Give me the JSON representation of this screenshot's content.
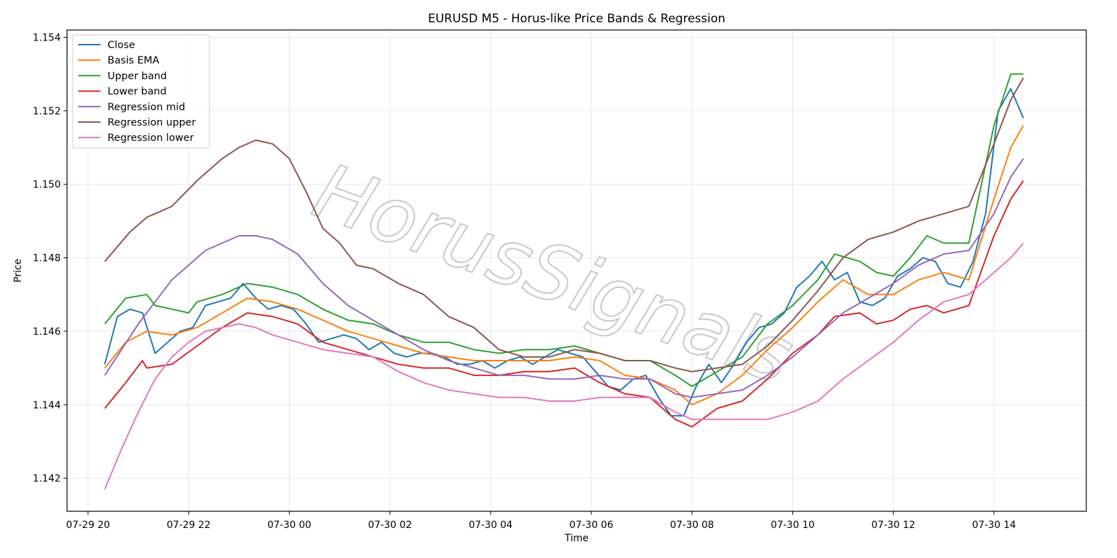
{
  "chart_data": {
    "type": "line",
    "title": "EURUSD M5 - Horus-like Price Bands & Regression",
    "xlabel": "Time",
    "ylabel": "Price",
    "ylim": [
      1.1411,
      1.1542
    ],
    "xlim": [
      "07-29 19:35",
      "07-30 15:50"
    ],
    "grid": true,
    "legend": "top-left",
    "watermark": "HorusSignals",
    "x_ticks": [
      "07-29 20",
      "07-29 22",
      "07-30 00",
      "07-30 02",
      "07-30 04",
      "07-30 06",
      "07-30 08",
      "07-30 10",
      "07-30 12",
      "07-30 14"
    ],
    "y_ticks": [
      "1.142",
      "1.144",
      "1.146",
      "1.148",
      "1.150",
      "1.152",
      "1.154"
    ],
    "x_tick_minutes": [
      0,
      120,
      240,
      360,
      480,
      600,
      720,
      840,
      960,
      1080
    ],
    "y_tick_values": [
      1.142,
      1.144,
      1.146,
      1.148,
      1.15,
      1.152,
      1.154
    ],
    "series": [
      {
        "name": "Close",
        "color": "#1f77b4",
        "x": [
          "07-29 20:20",
          "07-29 20:35",
          "07-29 20:50",
          "07-29 21:05",
          "07-29 21:20",
          "07-29 21:35",
          "07-29 21:50",
          "07-29 22:05",
          "07-29 22:20",
          "07-29 22:35",
          "07-29 22:50",
          "07-29 23:05",
          "07-29 23:20",
          "07-29 23:35",
          "07-29 23:50",
          "07-30 00:05",
          "07-30 00:20",
          "07-30 00:35",
          "07-30 00:50",
          "07-30 01:05",
          "07-30 01:20",
          "07-30 01:35",
          "07-30 01:50",
          "07-30 02:05",
          "07-30 02:20",
          "07-30 02:35",
          "07-30 02:50",
          "07-30 03:05",
          "07-30 03:20",
          "07-30 03:35",
          "07-30 03:50",
          "07-30 04:05",
          "07-30 04:20",
          "07-30 04:35",
          "07-30 04:50",
          "07-30 05:05",
          "07-30 05:20",
          "07-30 05:35",
          "07-30 05:50",
          "07-30 06:05",
          "07-30 06:20",
          "07-30 06:35",
          "07-30 06:50",
          "07-30 07:05",
          "07-30 07:20",
          "07-30 07:35",
          "07-30 07:50",
          "07-30 08:05",
          "07-30 08:20",
          "07-30 08:35",
          "07-30 08:50",
          "07-30 09:05",
          "07-30 09:20",
          "07-30 09:35",
          "07-30 09:50",
          "07-30 10:05",
          "07-30 10:20",
          "07-30 10:35",
          "07-30 10:50",
          "07-30 11:05",
          "07-30 11:20",
          "07-30 11:35",
          "07-30 11:50",
          "07-30 12:05",
          "07-30 12:20",
          "07-30 12:35",
          "07-30 12:50",
          "07-30 13:05",
          "07-30 13:20",
          "07-30 13:35",
          "07-30 13:50",
          "07-30 14:05",
          "07-30 14:20",
          "07-30 14:35"
        ],
        "y": [
          1.1451,
          1.1464,
          1.1466,
          1.1465,
          1.1454,
          1.1457,
          1.146,
          1.1461,
          1.1467,
          1.1468,
          1.1469,
          1.1473,
          1.1469,
          1.1466,
          1.1467,
          1.1466,
          1.1462,
          1.1457,
          1.1458,
          1.1459,
          1.1458,
          1.1455,
          1.1457,
          1.1454,
          1.1453,
          1.1454,
          1.1454,
          1.1453,
          1.1451,
          1.1451,
          1.1452,
          1.145,
          1.1452,
          1.1453,
          1.1451,
          1.1453,
          1.1455,
          1.1454,
          1.1453,
          1.1449,
          1.1445,
          1.1444,
          1.1447,
          1.1448,
          1.1442,
          1.1437,
          1.1437,
          1.1445,
          1.1451,
          1.1446,
          1.1451,
          1.1457,
          1.1461,
          1.1462,
          1.1465,
          1.1472,
          1.1475,
          1.1479,
          1.1474,
          1.1476,
          1.1468,
          1.1467,
          1.1469,
          1.1475,
          1.1477,
          1.148,
          1.1479,
          1.1473,
          1.1472,
          1.1479,
          1.1492,
          1.152,
          1.1526,
          1.1518
        ]
      },
      {
        "name": "Basis EMA",
        "color": "#ff7f0e",
        "x": [
          "07-29 20:20",
          "07-29 20:45",
          "07-29 21:10",
          "07-29 21:40",
          "07-29 22:10",
          "07-29 22:40",
          "07-29 23:10",
          "07-29 23:40",
          "07-30 00:10",
          "07-30 00:40",
          "07-30 01:10",
          "07-30 01:40",
          "07-30 02:10",
          "07-30 02:40",
          "07-30 03:10",
          "07-30 03:40",
          "07-30 04:10",
          "07-30 04:40",
          "07-30 05:10",
          "07-30 05:40",
          "07-30 06:10",
          "07-30 06:40",
          "07-30 07:10",
          "07-30 07:40",
          "07-30 08:00",
          "07-30 08:30",
          "07-30 09:00",
          "07-30 09:30",
          "07-30 10:00",
          "07-30 10:30",
          "07-30 11:00",
          "07-30 11:30",
          "07-30 12:00",
          "07-30 12:30",
          "07-30 13:00",
          "07-30 13:30",
          "07-30 14:00",
          "07-30 14:20",
          "07-30 14:35"
        ],
        "y": [
          1.145,
          1.1457,
          1.146,
          1.1459,
          1.1461,
          1.1465,
          1.1469,
          1.1468,
          1.1466,
          1.1463,
          1.146,
          1.1458,
          1.1456,
          1.1454,
          1.1453,
          1.1452,
          1.1452,
          1.1452,
          1.1452,
          1.1453,
          1.1452,
          1.1448,
          1.1447,
          1.1444,
          1.144,
          1.1443,
          1.1448,
          1.1455,
          1.1461,
          1.1468,
          1.1474,
          1.147,
          1.147,
          1.1474,
          1.1476,
          1.1474,
          1.1496,
          1.151,
          1.1516
        ]
      },
      {
        "name": "Upper band",
        "color": "#2ca02c",
        "x": [
          "07-29 20:20",
          "07-29 20:45",
          "07-29 21:10",
          "07-29 21:20",
          "07-29 21:40",
          "07-29 22:00",
          "07-29 22:10",
          "07-29 22:40",
          "07-29 23:10",
          "07-29 23:40",
          "07-30 00:10",
          "07-30 00:40",
          "07-30 01:10",
          "07-30 01:40",
          "07-30 02:10",
          "07-30 02:40",
          "07-30 03:10",
          "07-30 03:40",
          "07-30 04:10",
          "07-30 04:40",
          "07-30 05:10",
          "07-30 05:40",
          "07-30 06:10",
          "07-30 06:40",
          "07-30 07:10",
          "07-30 07:40",
          "07-30 08:00",
          "07-30 08:30",
          "07-30 09:00",
          "07-30 09:30",
          "07-30 10:00",
          "07-30 10:30",
          "07-30 10:50",
          "07-30 11:20",
          "07-30 11:40",
          "07-30 12:00",
          "07-30 12:20",
          "07-30 12:40",
          "07-30 13:00",
          "07-30 13:30",
          "07-30 14:00",
          "07-30 14:20",
          "07-30 14:35"
        ],
        "y": [
          1.1462,
          1.1469,
          1.147,
          1.1467,
          1.1466,
          1.1465,
          1.1468,
          1.147,
          1.1473,
          1.1472,
          1.147,
          1.1466,
          1.1463,
          1.1462,
          1.1459,
          1.1457,
          1.1457,
          1.1455,
          1.1454,
          1.1455,
          1.1455,
          1.1456,
          1.1454,
          1.1452,
          1.1452,
          1.1448,
          1.1445,
          1.1449,
          1.1453,
          1.1462,
          1.1467,
          1.1474,
          1.1481,
          1.1479,
          1.1476,
          1.1475,
          1.148,
          1.1486,
          1.1484,
          1.1484,
          1.1516,
          1.153,
          1.153
        ]
      },
      {
        "name": "Lower band",
        "color": "#d62728",
        "x": [
          "07-29 20:20",
          "07-29 20:45",
          "07-29 21:05",
          "07-29 21:10",
          "07-29 21:40",
          "07-29 22:10",
          "07-29 22:40",
          "07-29 23:10",
          "07-29 23:40",
          "07-30 00:10",
          "07-30 00:40",
          "07-30 01:10",
          "07-30 01:40",
          "07-30 02:10",
          "07-30 02:40",
          "07-30 03:10",
          "07-30 03:40",
          "07-30 04:10",
          "07-30 04:40",
          "07-30 05:10",
          "07-30 05:40",
          "07-30 06:10",
          "07-30 06:40",
          "07-30 07:10",
          "07-30 07:40",
          "07-30 08:00",
          "07-30 08:30",
          "07-30 09:00",
          "07-30 09:30",
          "07-30 10:00",
          "07-30 10:30",
          "07-30 10:50",
          "07-30 11:20",
          "07-30 11:40",
          "07-30 12:00",
          "07-30 12:20",
          "07-30 12:40",
          "07-30 13:00",
          "07-30 13:30",
          "07-30 14:00",
          "07-30 14:20",
          "07-30 14:35"
        ],
        "y": [
          1.1439,
          1.1446,
          1.1452,
          1.145,
          1.1451,
          1.1456,
          1.1461,
          1.1465,
          1.1464,
          1.1462,
          1.1457,
          1.1455,
          1.1453,
          1.1451,
          1.145,
          1.145,
          1.1448,
          1.1448,
          1.1449,
          1.1449,
          1.145,
          1.1446,
          1.1443,
          1.1442,
          1.1436,
          1.1434,
          1.1439,
          1.1441,
          1.1447,
          1.1454,
          1.1459,
          1.1464,
          1.1465,
          1.1462,
          1.1463,
          1.1466,
          1.1467,
          1.1465,
          1.1467,
          1.1486,
          1.1496,
          1.1501
        ]
      },
      {
        "name": "Regression mid",
        "color": "#9467bd",
        "x": [
          "07-29 20:20",
          "07-29 21:00",
          "07-29 21:40",
          "07-29 22:20",
          "07-29 23:00",
          "07-29 23:20",
          "07-29 23:40",
          "07-30 00:10",
          "07-30 00:40",
          "07-30 01:10",
          "07-30 01:40",
          "07-30 02:10",
          "07-30 02:40",
          "07-30 03:10",
          "07-30 03:40",
          "07-30 04:10",
          "07-30 04:40",
          "07-30 05:10",
          "07-30 05:40",
          "07-30 06:10",
          "07-30 06:40",
          "07-30 07:10",
          "07-30 07:40",
          "07-30 08:00",
          "07-30 08:30",
          "07-30 09:00",
          "07-30 09:30",
          "07-30 10:00",
          "07-30 10:30",
          "07-30 11:00",
          "07-30 11:30",
          "07-30 12:00",
          "07-30 12:30",
          "07-30 13:00",
          "07-30 13:30",
          "07-30 14:00",
          "07-30 14:20",
          "07-30 14:35"
        ],
        "y": [
          1.1448,
          1.1462,
          1.1474,
          1.1482,
          1.1486,
          1.1486,
          1.1485,
          1.1481,
          1.1473,
          1.1467,
          1.1463,
          1.1459,
          1.1455,
          1.1452,
          1.145,
          1.1448,
          1.1448,
          1.1447,
          1.1447,
          1.1448,
          1.1447,
          1.1447,
          1.1443,
          1.1442,
          1.1443,
          1.1444,
          1.1448,
          1.1453,
          1.1459,
          1.1465,
          1.1469,
          1.1473,
          1.1478,
          1.1481,
          1.1482,
          1.1492,
          1.1502,
          1.1507
        ]
      },
      {
        "name": "Regression upper",
        "color": "#8c564b",
        "x": [
          "07-29 20:20",
          "07-29 20:50",
          "07-29 21:10",
          "07-29 21:40",
          "07-29 22:10",
          "07-29 22:40",
          "07-29 23:00",
          "07-29 23:20",
          "07-29 23:40",
          "07-30 00:00",
          "07-30 00:20",
          "07-30 00:40",
          "07-30 01:00",
          "07-30 01:20",
          "07-30 01:40",
          "07-30 02:10",
          "07-30 02:40",
          "07-30 03:10",
          "07-30 03:40",
          "07-30 04:10",
          "07-30 04:40",
          "07-30 05:10",
          "07-30 05:40",
          "07-30 06:10",
          "07-30 06:40",
          "07-30 07:10",
          "07-30 07:40",
          "07-30 08:00",
          "07-30 08:30",
          "07-30 09:00",
          "07-30 09:30",
          "07-30 10:00",
          "07-30 10:30",
          "07-30 11:00",
          "07-30 11:30",
          "07-30 12:00",
          "07-30 12:30",
          "07-30 13:00",
          "07-30 13:30",
          "07-30 14:00",
          "07-30 14:20",
          "07-30 14:35"
        ],
        "y": [
          1.1479,
          1.1487,
          1.1491,
          1.1494,
          1.1501,
          1.1507,
          1.151,
          1.1512,
          1.1511,
          1.1507,
          1.1498,
          1.1488,
          1.1484,
          1.1478,
          1.1477,
          1.1473,
          1.147,
          1.1464,
          1.1461,
          1.1455,
          1.1453,
          1.1453,
          1.1455,
          1.1454,
          1.1452,
          1.1452,
          1.145,
          1.1449,
          1.145,
          1.1451,
          1.1456,
          1.1463,
          1.1471,
          1.148,
          1.1485,
          1.1487,
          1.149,
          1.1492,
          1.1494,
          1.1511,
          1.1523,
          1.1529
        ]
      },
      {
        "name": "Regression lower",
        "color": "#e377c2",
        "x": [
          "07-29 20:20",
          "07-29 20:40",
          "07-29 21:00",
          "07-29 21:20",
          "07-29 21:40",
          "07-29 22:00",
          "07-29 22:20",
          "07-29 22:40",
          "07-29 23:00",
          "07-29 23:20",
          "07-29 23:40",
          "07-30 00:10",
          "07-30 00:40",
          "07-30 01:10",
          "07-30 01:40",
          "07-30 02:10",
          "07-30 02:40",
          "07-30 03:10",
          "07-30 03:40",
          "07-30 04:10",
          "07-30 04:40",
          "07-30 05:10",
          "07-30 05:40",
          "07-30 06:10",
          "07-30 06:40",
          "07-30 07:10",
          "07-30 07:40",
          "07-30 08:00",
          "07-30 08:30",
          "07-30 09:00",
          "07-30 09:30",
          "07-30 10:00",
          "07-30 10:30",
          "07-30 11:00",
          "07-30 11:30",
          "07-30 12:00",
          "07-30 12:30",
          "07-30 13:00",
          "07-30 13:30",
          "07-30 14:00",
          "07-30 14:20",
          "07-30 14:35"
        ],
        "y": [
          1.1417,
          1.1428,
          1.1438,
          1.1447,
          1.1453,
          1.1457,
          1.146,
          1.1461,
          1.1462,
          1.1461,
          1.1459,
          1.1457,
          1.1455,
          1.1454,
          1.1453,
          1.1449,
          1.1446,
          1.1444,
          1.1443,
          1.1442,
          1.1442,
          1.1441,
          1.1441,
          1.1442,
          1.1442,
          1.1442,
          1.1438,
          1.1436,
          1.1436,
          1.1436,
          1.1436,
          1.1438,
          1.1441,
          1.1447,
          1.1452,
          1.1457,
          1.1463,
          1.1468,
          1.147,
          1.1476,
          1.148,
          1.1484
        ]
      }
    ]
  }
}
